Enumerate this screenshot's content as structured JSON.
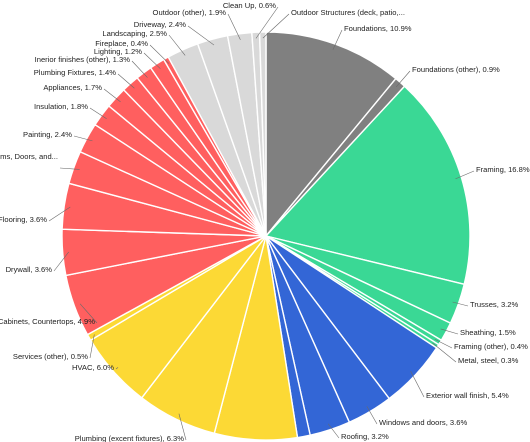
{
  "chart_data": {
    "type": "pie",
    "title": "",
    "series": [
      {
        "name": "",
        "value": 10.9,
        "label": "Foundations, 10.9%",
        "color": "#808080"
      },
      {
        "name": "",
        "value": 0.9,
        "label": "Foundations (other), 0.9%",
        "color": "#808080"
      },
      {
        "name": "",
        "value": 16.8,
        "label": "Framing, 16.8%",
        "color": "#3ad895"
      },
      {
        "name": "",
        "value": 3.2,
        "label": "Trusses, 3.2%",
        "color": "#3ad895"
      },
      {
        "name": "",
        "value": 1.5,
        "label": "Sheathing, 1.5%",
        "color": "#3ad895"
      },
      {
        "name": "",
        "value": 0.4,
        "label": "Framing (other), 0.4%",
        "color": "#3ad895"
      },
      {
        "name": "",
        "value": 0.3,
        "label": "Metal, steel, 0.3%",
        "color": "#3ad895"
      },
      {
        "name": "",
        "value": 5.4,
        "label": "Exterior wall finish, 5.4%",
        "color": "#3366d6"
      },
      {
        "name": "",
        "value": 3.6,
        "label": "Windows and doors, 3.6%",
        "color": "#3366d6"
      },
      {
        "name": "",
        "value": 3.2,
        "label": "Roofing, 3.2%",
        "color": "#3366d6"
      },
      {
        "name": "",
        "value": 1.0,
        "label": "",
        "color": "#3366d6"
      },
      {
        "name": "",
        "value": 6.5,
        "label": "",
        "color": "#fcd935"
      },
      {
        "name": "",
        "value": 6.3,
        "label": "Plumbing (excent fixtures), 6.3%",
        "color": "#fcd935"
      },
      {
        "name": "",
        "value": 6.0,
        "label": "HVAC, 6.0%",
        "color": "#fcd935"
      },
      {
        "name": "",
        "value": 0.5,
        "label": "Services (other), 0.5%",
        "color": "#fcd935"
      },
      {
        "name": "",
        "value": 4.9,
        "label": "Cabinets, Countertops, 4.9%",
        "color": "#ff5f5f"
      },
      {
        "name": "",
        "value": 3.6,
        "label": "Drywall, 3.6%",
        "color": "#ff5f5f"
      },
      {
        "name": "",
        "value": 3.6,
        "label": "Flooring, 3.6%",
        "color": "#ff5f5f"
      },
      {
        "name": "",
        "value": 2.6,
        "label": "Interior Trims, Doors, and...",
        "color": "#ff5f5f"
      },
      {
        "name": "",
        "value": 2.4,
        "label": "Painting, 2.4%",
        "color": "#ff5f5f"
      },
      {
        "name": "",
        "value": 1.8,
        "label": "Insulation, 1.8%",
        "color": "#ff5f5f"
      },
      {
        "name": "",
        "value": 1.7,
        "label": "Appliances, 1.7%",
        "color": "#ff5f5f"
      },
      {
        "name": "",
        "value": 1.4,
        "label": "Plumbing Fixtures, 1.4%",
        "color": "#ff5f5f"
      },
      {
        "name": "",
        "value": 1.3,
        "label": "Inerior finishes (other), 1.3%",
        "color": "#ff5f5f"
      },
      {
        "name": "",
        "value": 1.2,
        "label": "Lighting, 1.2%",
        "color": "#ff5f5f"
      },
      {
        "name": "",
        "value": 0.4,
        "label": "Fireplace, 0.4%",
        "color": "#ff5f5f"
      },
      {
        "name": "",
        "value": 2.5,
        "label": "Landscaping, 2.5%",
        "color": "#d9d9d9"
      },
      {
        "name": "",
        "value": 2.4,
        "label": "Driveway, 2.4%",
        "color": "#d9d9d9"
      },
      {
        "name": "",
        "value": 1.9,
        "label": "Outdoor (other), 1.9%",
        "color": "#d9d9d9"
      },
      {
        "name": "",
        "value": 0.6,
        "label": "Clean Up, 0.6%",
        "color": "#d9d9d9"
      },
      {
        "name": "",
        "value": 0.5,
        "label": "Outdoor Structures (deck, patio,...",
        "color": "#d9d9d9"
      }
    ]
  }
}
